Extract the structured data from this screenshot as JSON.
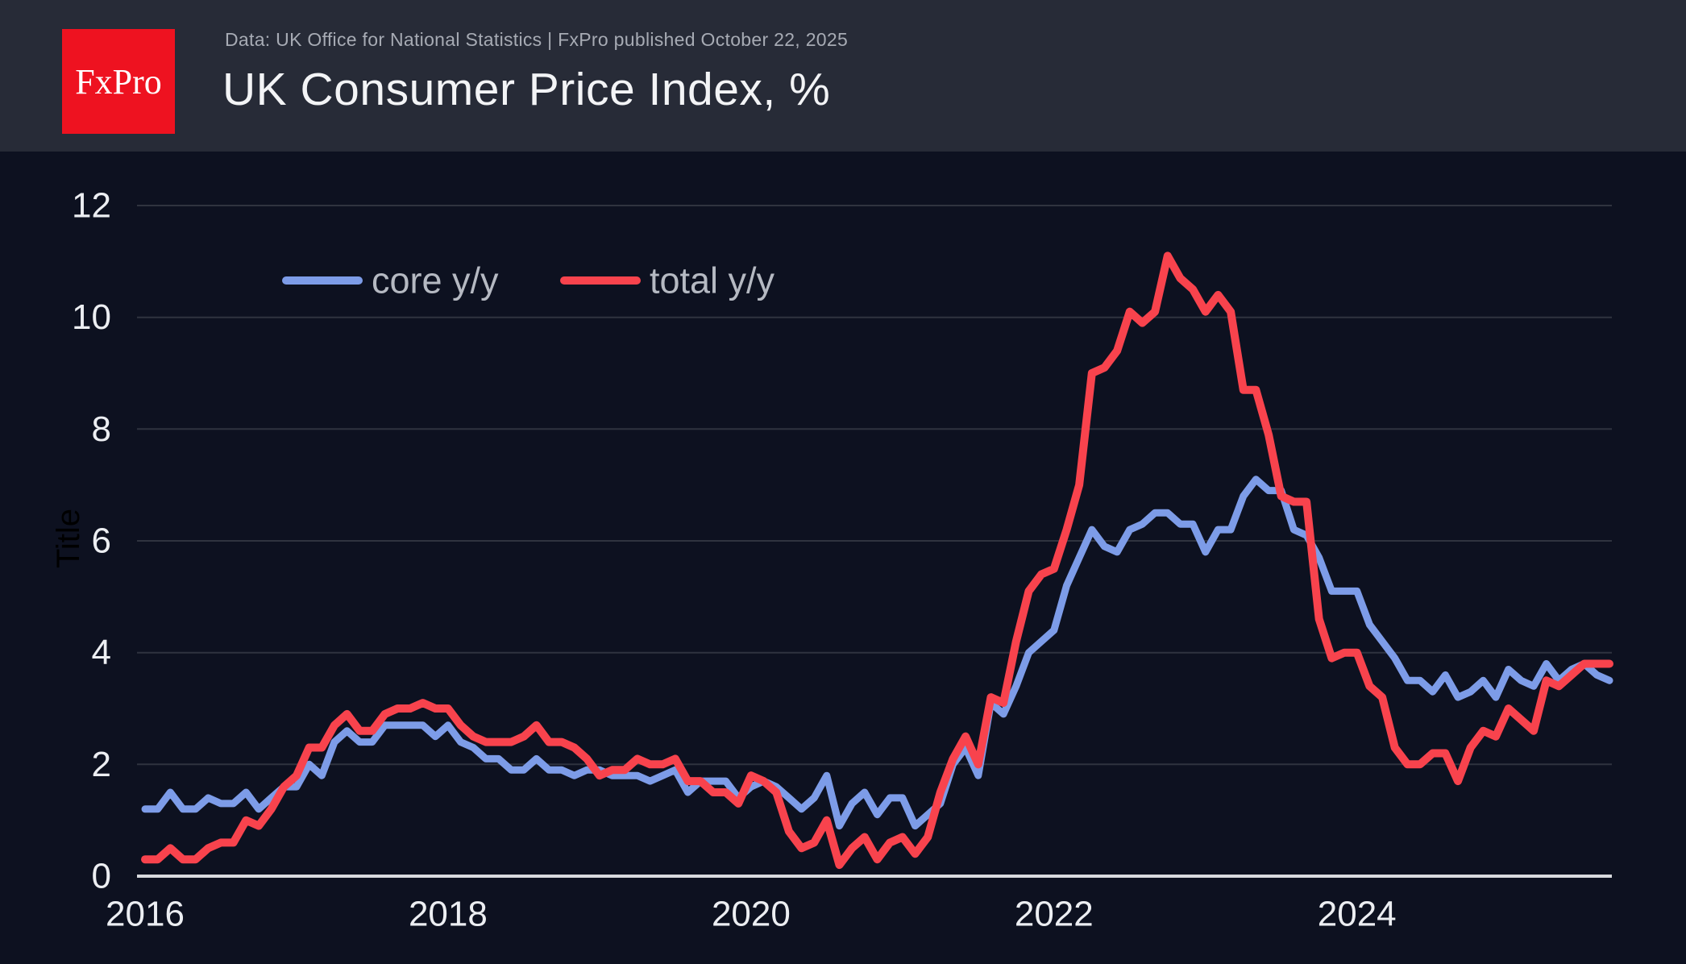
{
  "header": {
    "logo_text": "FxPro",
    "source_line": "Data: UK Office for National Statistics | FxPro published October 22, 2025",
    "title": "UK Consumer Price Index, %"
  },
  "colors": {
    "background": "#0d1120",
    "header_background": "#272b37",
    "logo_red": "#ee1220",
    "grid_line": "#2f333f",
    "zero_axis_line": "#d8dade",
    "axis_label": "#eceef2",
    "legend_label": "#b5b9c2",
    "subtitle_text": "#a7abb4",
    "title_text": "#f3f4f6",
    "core_line": "#7d9ce8",
    "total_line": "#f8434d"
  },
  "chart_data": {
    "type": "line",
    "title": "UK Consumer Price Index, %",
    "ylabel": "Title",
    "xlabel": "",
    "x_unit": "month",
    "x_start": "2016-01",
    "x_end": "2025-09",
    "x_tick_years": [
      2016,
      2018,
      2020,
      2022,
      2024
    ],
    "y_ticks": [
      0,
      2,
      4,
      6,
      8,
      10,
      12
    ],
    "ylim": [
      0,
      12
    ],
    "grid": "horizontal",
    "legend_position": "inside-top-left",
    "series": [
      {
        "name": "core y/y",
        "color": "#7d9ce8",
        "values": [
          1.2,
          1.2,
          1.5,
          1.2,
          1.2,
          1.4,
          1.3,
          1.3,
          1.5,
          1.2,
          1.4,
          1.6,
          1.6,
          2.0,
          1.8,
          2.4,
          2.6,
          2.4,
          2.4,
          2.7,
          2.7,
          2.7,
          2.7,
          2.5,
          2.7,
          2.4,
          2.3,
          2.1,
          2.1,
          1.9,
          1.9,
          2.1,
          1.9,
          1.9,
          1.8,
          1.9,
          1.9,
          1.8,
          1.8,
          1.8,
          1.7,
          1.8,
          1.9,
          1.5,
          1.7,
          1.7,
          1.7,
          1.4,
          1.6,
          1.7,
          1.6,
          1.4,
          1.2,
          1.4,
          1.8,
          0.9,
          1.3,
          1.5,
          1.1,
          1.4,
          1.4,
          0.9,
          1.1,
          1.3,
          2.0,
          2.3,
          1.8,
          3.1,
          2.9,
          3.4,
          4.0,
          4.2,
          4.4,
          5.2,
          5.7,
          6.2,
          5.9,
          5.8,
          6.2,
          6.3,
          6.5,
          6.5,
          6.3,
          6.3,
          5.8,
          6.2,
          6.2,
          6.8,
          7.1,
          6.9,
          6.9,
          6.2,
          6.1,
          5.7,
          5.1,
          5.1,
          5.1,
          4.5,
          4.2,
          3.9,
          3.5,
          3.5,
          3.3,
          3.6,
          3.2,
          3.3,
          3.5,
          3.2,
          3.7,
          3.5,
          3.4,
          3.8,
          3.5,
          3.7,
          3.8,
          3.6,
          3.5
        ]
      },
      {
        "name": "total y/y",
        "color": "#f8434d",
        "values": [
          0.3,
          0.3,
          0.5,
          0.3,
          0.3,
          0.5,
          0.6,
          0.6,
          1.0,
          0.9,
          1.2,
          1.6,
          1.8,
          2.3,
          2.3,
          2.7,
          2.9,
          2.6,
          2.6,
          2.9,
          3.0,
          3.0,
          3.1,
          3.0,
          3.0,
          2.7,
          2.5,
          2.4,
          2.4,
          2.4,
          2.5,
          2.7,
          2.4,
          2.4,
          2.3,
          2.1,
          1.8,
          1.9,
          1.9,
          2.1,
          2.0,
          2.0,
          2.1,
          1.7,
          1.7,
          1.5,
          1.5,
          1.3,
          1.8,
          1.7,
          1.5,
          0.8,
          0.5,
          0.6,
          1.0,
          0.2,
          0.5,
          0.7,
          0.3,
          0.6,
          0.7,
          0.4,
          0.7,
          1.5,
          2.1,
          2.5,
          2.0,
          3.2,
          3.1,
          4.2,
          5.1,
          5.4,
          5.5,
          6.2,
          7.0,
          9.0,
          9.1,
          9.4,
          10.1,
          9.9,
          10.1,
          11.1,
          10.7,
          10.5,
          10.1,
          10.4,
          10.1,
          8.7,
          8.7,
          7.9,
          6.8,
          6.7,
          6.7,
          4.6,
          3.9,
          4.0,
          4.0,
          3.4,
          3.2,
          2.3,
          2.0,
          2.0,
          2.2,
          2.2,
          1.7,
          2.3,
          2.6,
          2.5,
          3.0,
          2.8,
          2.6,
          3.5,
          3.4,
          3.6,
          3.8,
          3.8,
          3.8
        ]
      }
    ]
  }
}
